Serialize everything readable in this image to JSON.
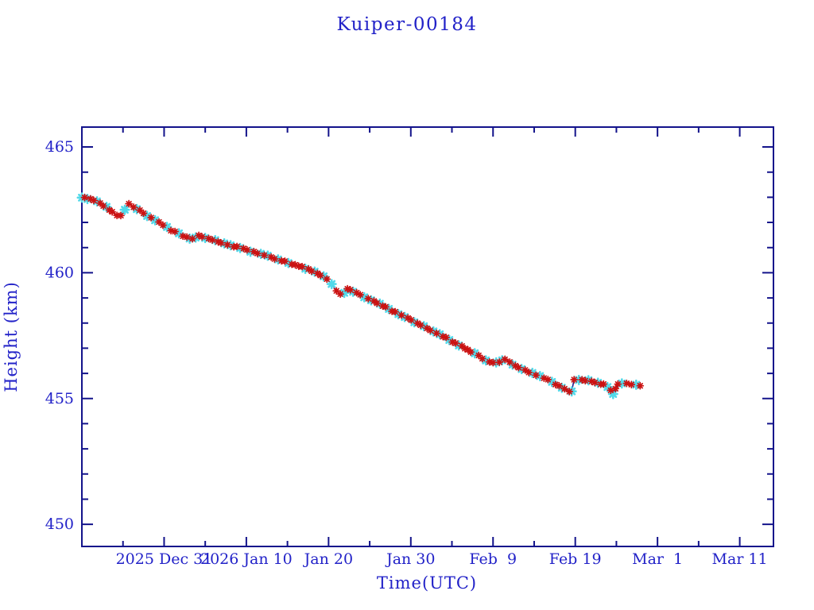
{
  "title": "Kuiper-00184",
  "chart_data": {
    "type": "line",
    "title": "Kuiper-00184",
    "xlabel": "Time(UTC)",
    "ylabel": "Height (km)",
    "legend": "none",
    "grid": false,
    "x_axis": {
      "epoch_day0": "2025 Dec 21",
      "xlim_days": [
        0,
        84.1
      ],
      "major_ticks": [
        {
          "day": 10,
          "label": "2025 Dec 31"
        },
        {
          "day": 20,
          "label": "2026 Jan 10"
        },
        {
          "day": 30,
          "label": "Jan 20"
        },
        {
          "day": 40,
          "label": "Jan 30"
        },
        {
          "day": 50,
          "label": "Feb  9"
        },
        {
          "day": 60,
          "label": "Feb 19"
        },
        {
          "day": 70,
          "label": "Mar  1"
        },
        {
          "day": 80,
          "label": "Mar 11"
        }
      ],
      "minor_tick_days": [
        5,
        15,
        25,
        35,
        45,
        55,
        65,
        75
      ]
    },
    "y_axis": {
      "ylim": [
        449.12,
        465.79
      ],
      "major_ticks": [
        450,
        455,
        460,
        465
      ],
      "minor_tick_interval": 1
    },
    "colors": {
      "label_blue": "#2222c8",
      "axis_navy": "#13138b",
      "line_navy": "#10108c",
      "marker_red": "#cb1212",
      "marker_cyan": "#52d9e9"
    },
    "series": [
      {
        "name": "height",
        "marker": "asterisk",
        "marker_colors": [
          "#cb1212",
          "#52d9e9"
        ],
        "points_day_km": [
          [
            0.0,
            463.01
          ],
          [
            0.68,
            462.95
          ],
          [
            1.45,
            462.88
          ],
          [
            2.22,
            462.76
          ],
          [
            3.0,
            462.6
          ],
          [
            3.68,
            462.41
          ],
          [
            4.26,
            462.28
          ],
          [
            4.74,
            462.25
          ],
          [
            5.22,
            462.51
          ],
          [
            5.71,
            462.76
          ],
          [
            6.29,
            462.6
          ],
          [
            7.06,
            462.47
          ],
          [
            7.93,
            462.28
          ],
          [
            8.9,
            462.1
          ],
          [
            9.86,
            461.91
          ],
          [
            10.83,
            461.68
          ],
          [
            11.8,
            461.56
          ],
          [
            12.77,
            461.4
          ],
          [
            13.44,
            461.34
          ],
          [
            14.22,
            461.46
          ],
          [
            14.99,
            461.4
          ],
          [
            15.86,
            461.31
          ],
          [
            16.92,
            461.21
          ],
          [
            18.09,
            461.08
          ],
          [
            19.25,
            460.99
          ],
          [
            20.5,
            460.86
          ],
          [
            21.76,
            460.74
          ],
          [
            23.02,
            460.61
          ],
          [
            24.27,
            460.48
          ],
          [
            25.53,
            460.36
          ],
          [
            26.79,
            460.23
          ],
          [
            27.95,
            460.07
          ],
          [
            29.01,
            459.92
          ],
          [
            29.79,
            459.76
          ],
          [
            30.37,
            459.54
          ],
          [
            30.95,
            459.28
          ],
          [
            31.43,
            459.13
          ],
          [
            31.91,
            459.19
          ],
          [
            32.3,
            459.38
          ],
          [
            32.98,
            459.25
          ],
          [
            33.85,
            459.13
          ],
          [
            34.82,
            458.97
          ],
          [
            35.88,
            458.81
          ],
          [
            36.94,
            458.62
          ],
          [
            38.1,
            458.43
          ],
          [
            39.26,
            458.24
          ],
          [
            40.43,
            458.05
          ],
          [
            41.59,
            457.86
          ],
          [
            42.75,
            457.67
          ],
          [
            43.91,
            457.48
          ],
          [
            45.07,
            457.26
          ],
          [
            46.23,
            457.07
          ],
          [
            47.29,
            456.85
          ],
          [
            48.26,
            456.7
          ],
          [
            49.13,
            456.51
          ],
          [
            50.0,
            456.41
          ],
          [
            50.77,
            456.47
          ],
          [
            51.45,
            456.57
          ],
          [
            52.03,
            456.44
          ],
          [
            52.71,
            456.28
          ],
          [
            53.48,
            456.19
          ],
          [
            54.35,
            456.06
          ],
          [
            55.22,
            455.94
          ],
          [
            56.19,
            455.81
          ],
          [
            57.16,
            455.65
          ],
          [
            58.03,
            455.5
          ],
          [
            58.7,
            455.37
          ],
          [
            59.28,
            455.27
          ],
          [
            59.57,
            455.31
          ],
          [
            59.86,
            455.75
          ],
          [
            60.44,
            455.75
          ],
          [
            61.21,
            455.72
          ],
          [
            61.99,
            455.69
          ],
          [
            62.76,
            455.62
          ],
          [
            63.44,
            455.56
          ],
          [
            63.92,
            455.47
          ],
          [
            64.31,
            455.31
          ],
          [
            64.6,
            455.18
          ],
          [
            64.89,
            455.37
          ],
          [
            65.18,
            455.56
          ],
          [
            65.67,
            455.62
          ],
          [
            66.25,
            455.59
          ],
          [
            66.83,
            455.56
          ],
          [
            67.41,
            455.53
          ],
          [
            67.89,
            455.5
          ]
        ]
      }
    ]
  }
}
